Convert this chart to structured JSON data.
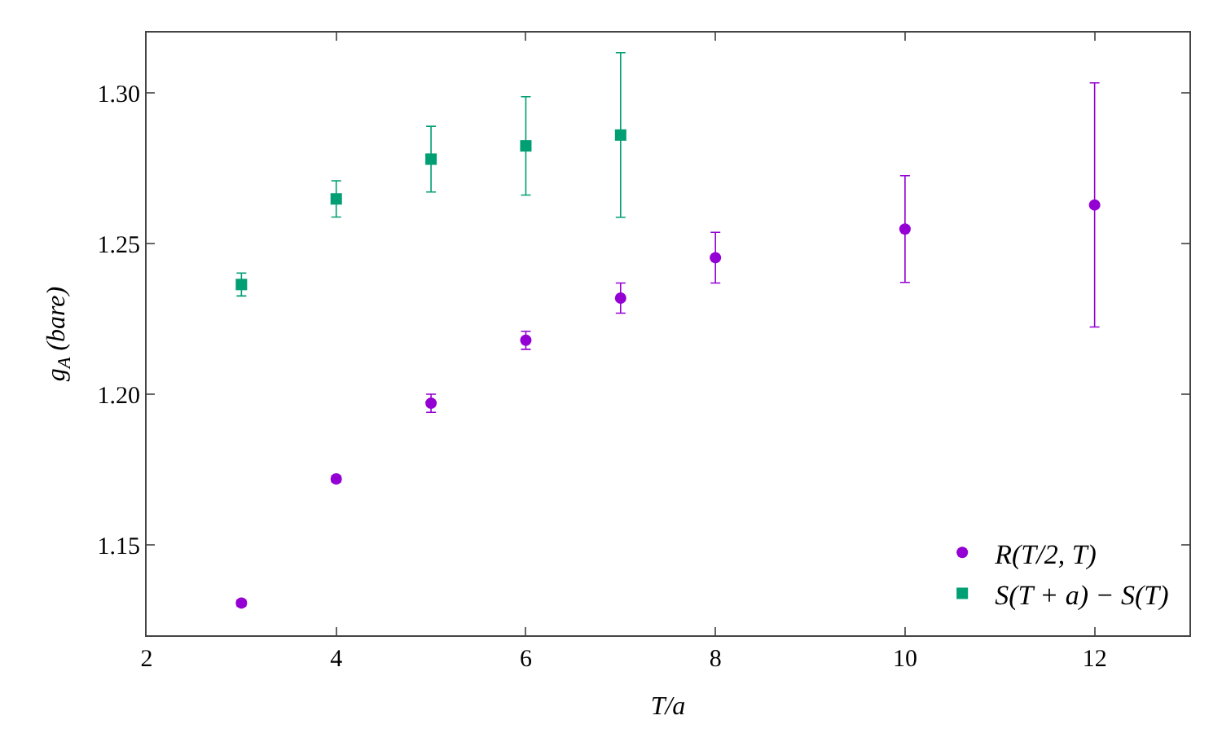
{
  "chart_data": {
    "type": "scatter",
    "xlabel": "T/a",
    "ylabel": "g$_{A}$ (bare)",
    "xlim": [
      2,
      13
    ],
    "xticks": [
      2,
      4,
      6,
      8,
      10,
      12
    ],
    "ylim": [
      1.12,
      1.32
    ],
    "yticks": [
      {
        "value": 1.15,
        "label": "1.15"
      },
      {
        "value": 1.2,
        "label": "1.20"
      },
      {
        "value": 1.25,
        "label": "1.25"
      },
      {
        "value": 1.3,
        "label": "1.30"
      }
    ],
    "legend": "bottom right",
    "series": [
      {
        "name": "R(T/2, T)",
        "color": "#9400d3",
        "marker": "circle",
        "x": [
          3,
          4,
          5,
          6,
          7,
          8,
          10,
          12
        ],
        "values": [
          1.1307,
          1.1719,
          1.197,
          1.2179,
          1.2319,
          1.2453,
          1.2548,
          1.2628
        ],
        "errors": [
          0.001,
          0.001,
          0.003,
          0.003,
          0.005,
          0.0084,
          0.0177,
          0.0405
        ]
      },
      {
        "name": "S(T + a) − S(T)",
        "color": "#009e73",
        "marker": "square",
        "x": [
          3,
          4,
          5,
          6,
          7
        ],
        "values": [
          1.2364,
          1.2648,
          1.278,
          1.2824,
          1.286
        ],
        "errors": [
          0.0038,
          0.006,
          0.0109,
          0.0163,
          0.0273
        ]
      }
    ]
  }
}
